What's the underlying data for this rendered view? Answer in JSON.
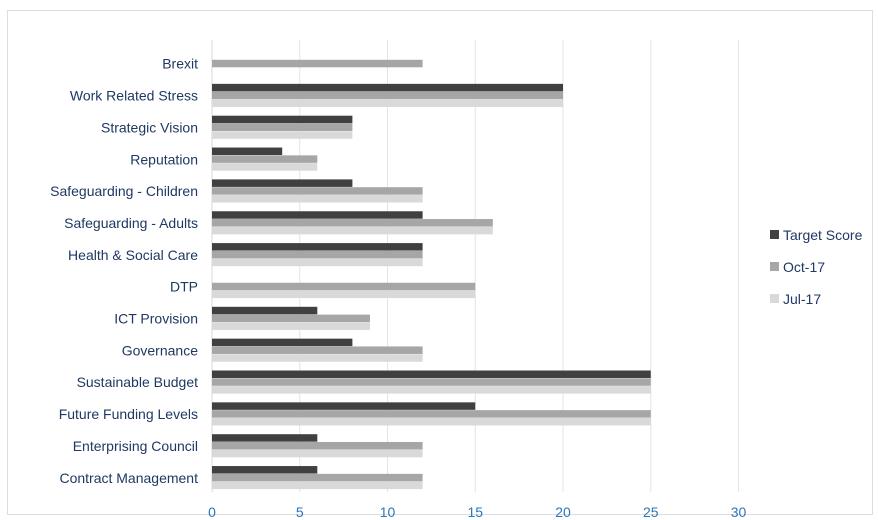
{
  "chart_data": {
    "type": "bar",
    "orientation": "horizontal",
    "categories": [
      "Brexit",
      "Work Related Stress",
      "Strategic Vision",
      "Reputation",
      "Safeguarding - Children",
      "Safeguarding - Adults",
      "Health & Social Care",
      "DTP",
      "ICT Provision",
      "Governance",
      "Sustainable Budget",
      "Future Funding Levels",
      "Enterprising Council",
      "Contract Management"
    ],
    "series": [
      {
        "name": "Target Score",
        "color": "#404040",
        "values": [
          null,
          20,
          8,
          4,
          8,
          12,
          12,
          null,
          6,
          8,
          25,
          15,
          6,
          6
        ]
      },
      {
        "name": "Oct-17",
        "color": "#a6a6a6",
        "values": [
          12,
          20,
          8,
          6,
          12,
          16,
          12,
          15,
          9,
          12,
          25,
          25,
          12,
          12
        ]
      },
      {
        "name": "Jul-17",
        "color": "#d9d9d9",
        "values": [
          null,
          20,
          8,
          6,
          12,
          16,
          12,
          15,
          9,
          12,
          25,
          25,
          12,
          12
        ]
      }
    ],
    "xticks": [
      "0",
      "5",
      "10",
      "15",
      "20",
      "25",
      "30"
    ],
    "xlim": [
      0,
      30
    ],
    "grid": true,
    "legend_position": "right",
    "title": "",
    "xlabel": "",
    "ylabel": ""
  }
}
